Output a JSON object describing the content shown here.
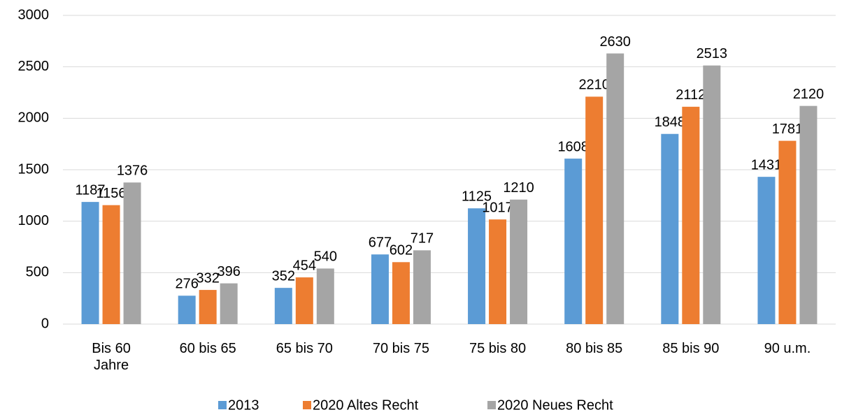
{
  "chart_data": {
    "type": "bar",
    "categories": [
      "Bis 60 Jahre",
      "60 bis 65",
      "65 bis 70",
      "70 bis 75",
      "75 bis 80",
      "80 bis 85",
      "85 bis 90",
      "90 u.m."
    ],
    "series": [
      {
        "name": "2013",
        "color": "#5b9bd5",
        "values": [
          1187,
          276,
          352,
          677,
          1125,
          1608,
          1848,
          1431
        ]
      },
      {
        "name": "2020 Altes Recht",
        "color": "#ed7d31",
        "values": [
          1156,
          332,
          454,
          602,
          1017,
          2210,
          2112,
          1781
        ]
      },
      {
        "name": "2020 Neues Recht",
        "color": "#a5a5a5",
        "values": [
          1376,
          396,
          540,
          717,
          1210,
          2630,
          2513,
          2120
        ]
      }
    ],
    "ylim": [
      0,
      3000
    ],
    "yticks": [
      0,
      500,
      1000,
      1500,
      2000,
      2500,
      3000
    ],
    "grid": true,
    "legend": "bottom"
  }
}
